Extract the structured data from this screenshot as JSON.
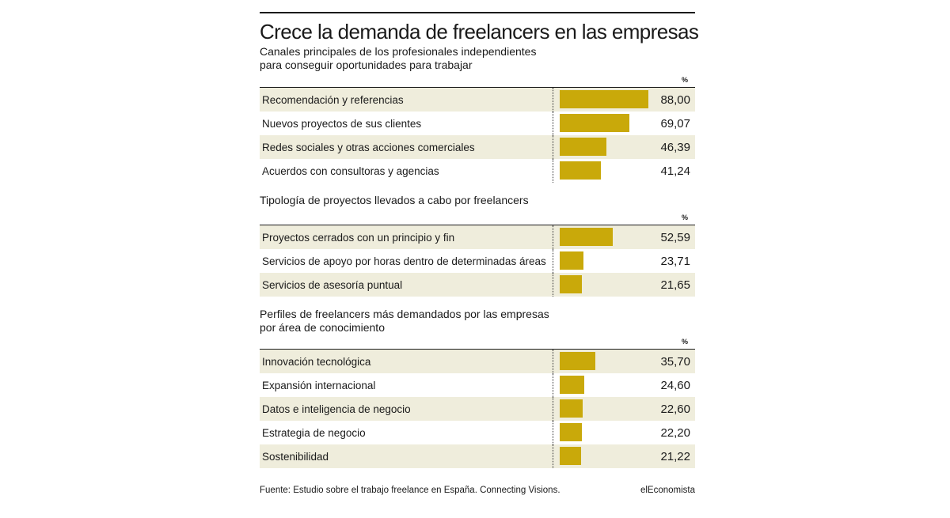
{
  "title": "Crece la demanda de freelancers en las empresas",
  "bar_color": "#c9a90a",
  "shade_color": "#efeddc",
  "chart_data": [
    {
      "type": "bar",
      "orientation": "horizontal",
      "subtitle": [
        "Canales principales de los profesionales independientes",
        "para conseguir oportunidades para trabajar"
      ],
      "unit": "%",
      "categories": [
        "Recomendación y referencias",
        "Nuevos proyectos de sus clientes",
        "Redes sociales y otras acciones comerciales",
        "Acuerdos con consultoras y agencias"
      ],
      "values": [
        88.0,
        69.07,
        46.39,
        41.24
      ],
      "labels": [
        "88,00",
        "69,07",
        "46,39",
        "41,24"
      ],
      "xlim": [
        0,
        88
      ]
    },
    {
      "type": "bar",
      "orientation": "horizontal",
      "subtitle": [
        "Tipología de proyectos llevados a cabo por freelancers"
      ],
      "unit": "%",
      "categories": [
        "Proyectos cerrados con un principio y fin",
        "Servicios de apoyo por horas dentro de determinadas áreas",
        "Servicios de asesoría puntual"
      ],
      "values": [
        52.59,
        23.71,
        21.65
      ],
      "labels": [
        "52,59",
        "23,71",
        "21,65"
      ],
      "xlim": [
        0,
        88
      ]
    },
    {
      "type": "bar",
      "orientation": "horizontal",
      "subtitle": [
        "Perfiles de freelancers más demandados por las empresas",
        "por área de conocimiento"
      ],
      "unit": "%",
      "categories": [
        "Innovación tecnológica",
        "Expansión internacional",
        "Datos e inteligencia de negocio",
        "Estrategia de negocio",
        "Sostenibilidad"
      ],
      "values": [
        35.7,
        24.6,
        22.6,
        22.2,
        21.22
      ],
      "labels": [
        "35,70",
        "24,60",
        "22,60",
        "22,20",
        "21,22"
      ],
      "xlim": [
        0,
        88
      ]
    }
  ],
  "footer": {
    "source": "Fuente: Estudio sobre el trabajo freelance en España. Connecting Visions.",
    "brand": "elEconomista"
  }
}
